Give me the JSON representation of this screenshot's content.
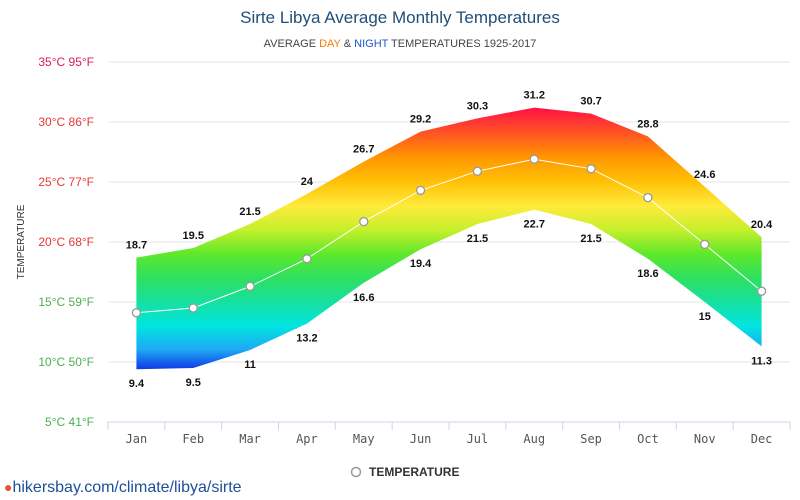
{
  "chart_data": {
    "type": "area",
    "title": "Sirte Libya Average Monthly Temperatures",
    "subtitle": {
      "prefix": "AVERAGE ",
      "day_word": "DAY",
      "joiner": " & ",
      "night_word": "NIGHT",
      "suffix": " TEMPERATURES 1925-2017"
    },
    "ylabel": "TEMPERATURE",
    "ylim": [
      5,
      35
    ],
    "y_ticks": [
      {
        "value": 35,
        "label": "35°C 95°F",
        "color": "#d81b60"
      },
      {
        "value": 30,
        "label": "30°C 86°F",
        "color": "#e53935"
      },
      {
        "value": 25,
        "label": "25°C 77°F",
        "color": "#e53935"
      },
      {
        "value": 20,
        "label": "20°C 68°F",
        "color": "#e53935"
      },
      {
        "value": 15,
        "label": "15°C 59°F",
        "color": "#4caf50"
      },
      {
        "value": 10,
        "label": "10°C 50°F",
        "color": "#4caf50"
      },
      {
        "value": 5,
        "label": "5°C 41°F",
        "color": "#4caf50"
      }
    ],
    "categories": [
      "Jan",
      "Feb",
      "Mar",
      "Apr",
      "May",
      "Jun",
      "Jul",
      "Aug",
      "Sep",
      "Oct",
      "Nov",
      "Dec"
    ],
    "day": [
      18.7,
      19.5,
      21.5,
      24,
      26.7,
      29.2,
      30.3,
      31.2,
      30.7,
      28.8,
      24.6,
      20.4
    ],
    "night": [
      9.4,
      9.5,
      11,
      13.2,
      16.6,
      19.4,
      21.5,
      22.7,
      21.5,
      18.6,
      15,
      11.3
    ],
    "series": [
      {
        "name": "TEMPERATURE",
        "values": [
          14.1,
          14.5,
          16.3,
          18.6,
          21.7,
          24.3,
          25.9,
          26.9,
          26.1,
          23.7,
          19.8,
          15.9
        ]
      }
    ],
    "grid": true,
    "legend": "bottom-center"
  },
  "footer": {
    "text": "hikersbay.com/climate/libya/sirte"
  },
  "colors": {
    "title": "#1f4e79",
    "day_accent": "#f57c00",
    "night_accent": "#1e56c8",
    "grid": "#e6e6e6",
    "line": "#ffffff",
    "footer": "#1f4e9a"
  },
  "icons": {
    "footer": "map-pin-icon",
    "legend": "circle-marker-icon"
  }
}
